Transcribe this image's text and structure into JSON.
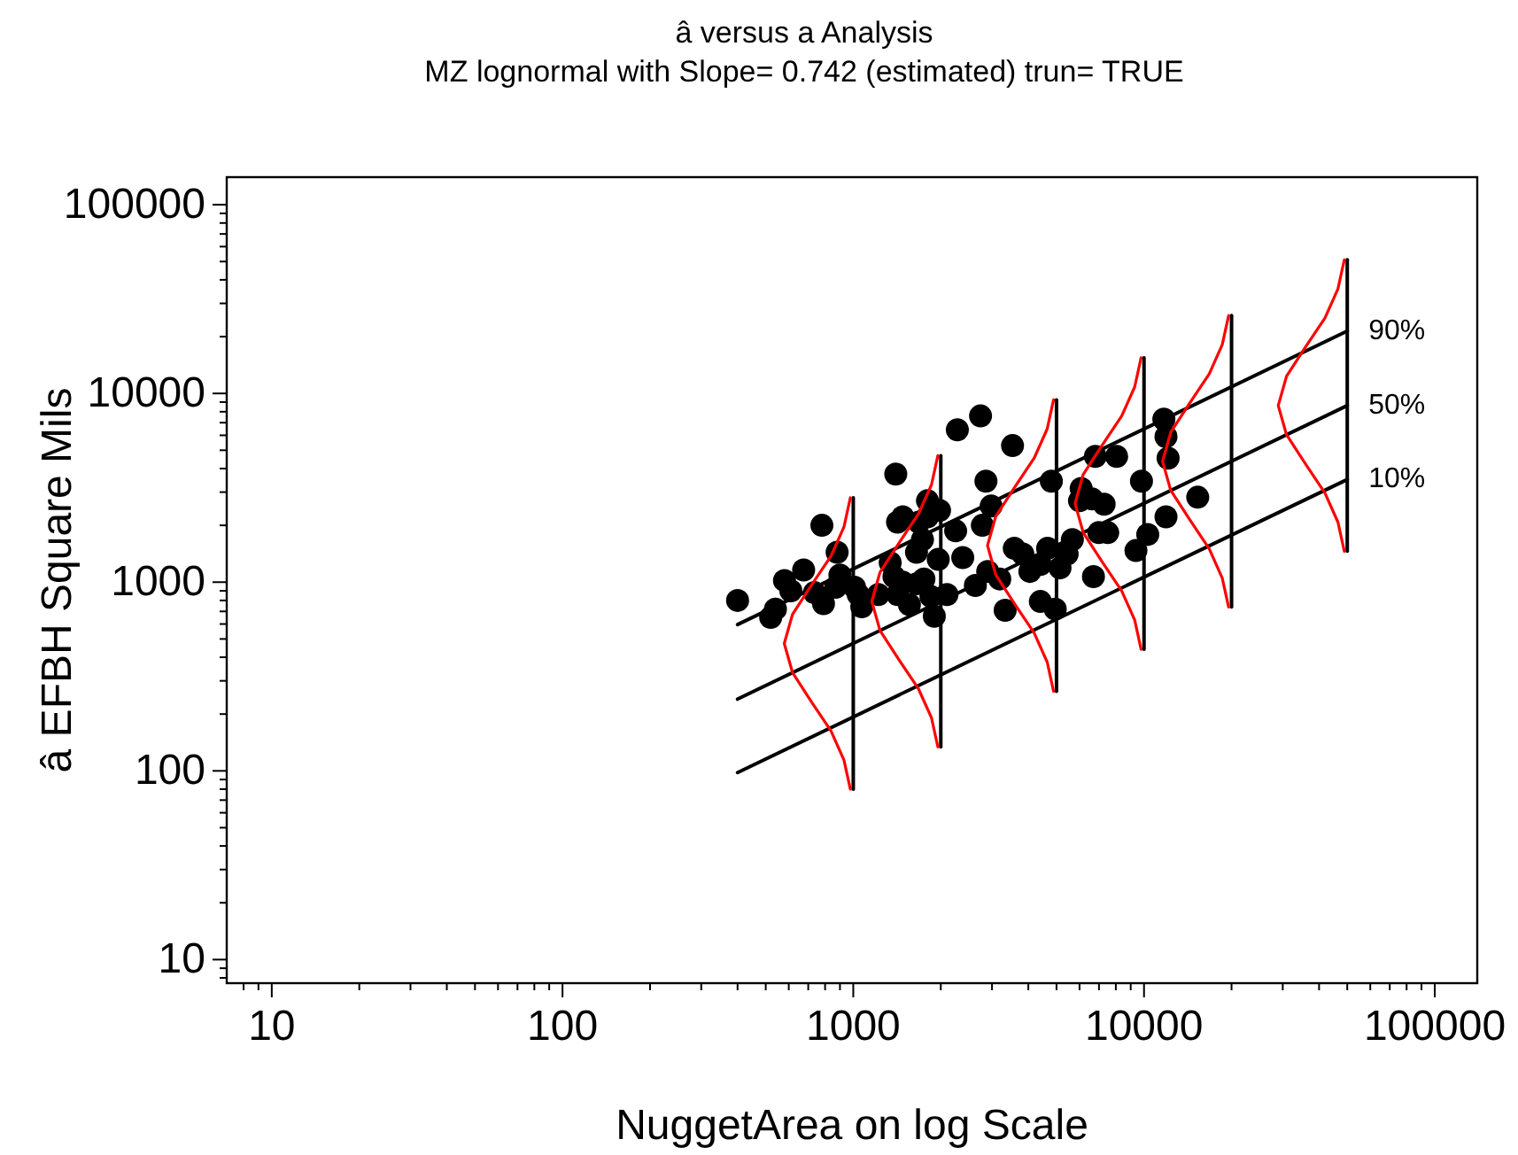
{
  "chart_data": {
    "type": "scatter",
    "title": "â versus a Analysis",
    "subtitle": "MZ lognormal with Slope= 0.742 (estimated) trun= TRUE",
    "xlabel": "NuggetArea on log Scale",
    "ylabel": "â EFBH Square Mils",
    "log": "xy",
    "xlim": [
      7,
      140000
    ],
    "ylim": [
      7.5,
      140000
    ],
    "xticks": [
      {
        "value": 8,
        "label": null
      },
      {
        "value": 9,
        "label": null
      },
      10,
      {
        "value": 20,
        "label": null
      },
      {
        "value": 30,
        "label": null
      },
      {
        "value": 40,
        "label": null
      },
      {
        "value": 50,
        "label": null
      },
      {
        "value": 60,
        "label": null
      },
      {
        "value": 70,
        "label": null
      },
      {
        "value": 80,
        "label": null
      },
      {
        "value": 90,
        "label": null
      },
      100,
      {
        "value": 200,
        "label": null
      },
      {
        "value": 300,
        "label": null
      },
      {
        "value": 400,
        "label": null
      },
      {
        "value": 500,
        "label": null
      },
      {
        "value": 600,
        "label": null
      },
      {
        "value": 700,
        "label": null
      },
      {
        "value": 800,
        "label": null
      },
      {
        "value": 900,
        "label": null
      },
      1000,
      {
        "value": 2000,
        "label": null
      },
      {
        "value": 3000,
        "label": null
      },
      {
        "value": 4000,
        "label": null
      },
      {
        "value": 5000,
        "label": null
      },
      {
        "value": 6000,
        "label": null
      },
      {
        "value": 7000,
        "label": null
      },
      {
        "value": 8000,
        "label": null
      },
      {
        "value": 9000,
        "label": null
      },
      10000,
      {
        "value": 20000,
        "label": null
      },
      {
        "value": 30000,
        "label": null
      },
      {
        "value": 40000,
        "label": null
      },
      {
        "value": 50000,
        "label": null
      },
      {
        "value": 60000,
        "label": null
      },
      {
        "value": 70000,
        "label": null
      },
      {
        "value": 80000,
        "label": null
      },
      {
        "value": 90000,
        "label": null
      },
      100000
    ],
    "yticks": [
      {
        "value": 8,
        "label": null
      },
      {
        "value": 9,
        "label": null
      },
      10,
      {
        "value": 20,
        "label": null
      },
      {
        "value": 30,
        "label": null
      },
      {
        "value": 40,
        "label": null
      },
      {
        "value": 50,
        "label": null
      },
      {
        "value": 60,
        "label": null
      },
      {
        "value": 70,
        "label": null
      },
      {
        "value": 80,
        "label": null
      },
      {
        "value": 90,
        "label": null
      },
      100,
      {
        "value": 200,
        "label": null
      },
      {
        "value": 300,
        "label": null
      },
      {
        "value": 400,
        "label": null
      },
      {
        "value": 500,
        "label": null
      },
      {
        "value": 600,
        "label": null
      },
      {
        "value": 700,
        "label": null
      },
      {
        "value": 800,
        "label": null
      },
      {
        "value": 900,
        "label": null
      },
      1000,
      {
        "value": 2000,
        "label": null
      },
      {
        "value": 3000,
        "label": null
      },
      {
        "value": 4000,
        "label": null
      },
      {
        "value": 5000,
        "label": null
      },
      {
        "value": 6000,
        "label": null
      },
      {
        "value": 7000,
        "label": null
      },
      {
        "value": 8000,
        "label": null
      },
      {
        "value": 9000,
        "label": null
      },
      10000,
      {
        "value": 20000,
        "label": null
      },
      {
        "value": 30000,
        "label": null
      },
      {
        "value": 40000,
        "label": null
      },
      {
        "value": 50000,
        "label": null
      },
      {
        "value": 60000,
        "label": null
      },
      {
        "value": 70000,
        "label": null
      },
      {
        "value": 80000,
        "label": null
      },
      {
        "value": 90000,
        "label": null
      },
      100000
    ],
    "series": [
      {
        "marker": "circle",
        "color": "#000000",
        "x": [
          400,
          520,
          540,
          580,
          610,
          675,
          780,
          735,
          790,
          880,
          900,
          870,
          1010,
          1040,
          1070,
          1220,
          1340,
          1420,
          1380,
          1420,
          1480,
          1400,
          1480,
          1560,
          1650,
          1650,
          1680,
          1730,
          1800,
          1800,
          1750,
          1850,
          1900,
          1980,
          1960,
          2100,
          2250,
          2280,
          2380,
          2630,
          2740,
          2780,
          2860,
          2980,
          2900,
          3190,
          3330,
          3530,
          3580,
          3830,
          4050,
          4400,
          4400,
          4660,
          4950,
          4800,
          5140,
          5440,
          5670,
          6000,
          6080,
          6620,
          6800,
          6700,
          6990,
          7290,
          7500,
          8050,
          9380,
          9800,
          10300,
          11700,
          11900,
          12100,
          11900,
          15300
        ],
        "values": [
          800,
          650,
          720,
          1020,
          900,
          1160,
          2000,
          880,
          770,
          1440,
          1090,
          940,
          940,
          860,
          740,
          860,
          1270,
          2080,
          1070,
          860,
          2220,
          3740,
          1000,
          760,
          980,
          1440,
          2080,
          1680,
          2220,
          2700,
          1040,
          840,
          660,
          2400,
          1320,
          860,
          1870,
          6420,
          1350,
          960,
          7600,
          2000,
          3430,
          2530,
          1140,
          1040,
          710,
          5290,
          1510,
          1410,
          1140,
          1240,
          790,
          1510,
          720,
          3430,
          1190,
          1410,
          1680,
          2700,
          3140,
          2760,
          4640,
          1070,
          1830,
          2590,
          1830,
          4640,
          1470,
          3430,
          1790,
          7300,
          5900,
          4540,
          2220,
          2820
        ]
      },
      {
        "type": "line",
        "color": "#000000",
        "x": [
          400,
          50000
        ],
        "values": [
          596,
          21400
        ]
      },
      {
        "type": "line",
        "color": "#000000",
        "x": [
          400,
          50000
        ],
        "values": [
          240,
          8630
        ]
      },
      {
        "type": "line",
        "color": "#000000",
        "x": [
          400,
          50000
        ],
        "values": [
          98,
          3500
        ]
      },
      {
        "type": "line",
        "color": "#000000",
        "x": [
          1000,
          1000
        ],
        "values": [
          80,
          2800
        ]
      },
      {
        "type": "line",
        "color": "#000000",
        "x": [
          2000,
          2000
        ],
        "values": [
          134,
          4683
        ]
      },
      {
        "type": "line",
        "color": "#000000",
        "x": [
          5000,
          5000
        ],
        "values": [
          264,
          9253
        ]
      },
      {
        "type": "line",
        "color": "#000000",
        "x": [
          10000,
          10000
        ],
        "values": [
          441,
          15460
        ]
      },
      {
        "type": "line",
        "color": "#000000",
        "x": [
          20000,
          20000
        ],
        "values": [
          738,
          25850
        ]
      },
      {
        "type": "line",
        "color": "#000000",
        "x": [
          50000,
          50000
        ],
        "values": [
          1458,
          51090
        ]
      },
      {
        "type": "line",
        "color": "#ff0000",
        "x": [
          977,
          929,
          838,
          718,
          618,
          579,
          618,
          718,
          838,
          929,
          977
        ],
        "values": [
          80,
          114,
          163,
          232,
          332,
          473,
          675,
          964,
          1375,
          1963,
          2800
        ]
      },
      {
        "type": "line",
        "color": "#ff0000",
        "x": [
          1954,
          1858,
          1676,
          1436,
          1236,
          1158,
          1236,
          1436,
          1676,
          1858,
          1954
        ],
        "values": [
          134,
          191,
          272,
          388,
          554,
          791,
          1129,
          1611,
          2299,
          3283,
          4683
        ]
      },
      {
        "type": "line",
        "color": "#ff0000",
        "x": [
          4885,
          4645,
          4190,
          3590,
          3090,
          2895,
          3090,
          3590,
          4190,
          4645,
          4885
        ],
        "values": [
          264,
          377,
          538,
          767,
          1096,
          1563,
          2230,
          3184,
          4542,
          6486,
          9253
        ]
      },
      {
        "type": "line",
        "color": "#ff0000",
        "x": [
          9770,
          9290,
          8380,
          7180,
          6180,
          5790,
          6180,
          7180,
          8380,
          9290,
          9770
        ],
        "values": [
          441,
          629,
          899,
          1282,
          1831,
          2612,
          3727,
          5321,
          7590,
          10840,
          15460
        ]
      },
      {
        "type": "line",
        "color": "#ff0000",
        "x": [
          19540,
          18580,
          16760,
          14360,
          12360,
          11580,
          12360,
          14360,
          16760,
          18580,
          19540
        ],
        "values": [
          738,
          1052,
          1502,
          2144,
          3061,
          4366,
          6230,
          8894,
          12690,
          18120,
          25850
        ]
      },
      {
        "type": "line",
        "color": "#ff0000",
        "x": [
          48850,
          46450,
          41900,
          35900,
          30900,
          28950,
          30900,
          35900,
          41900,
          46450,
          48850
        ],
        "values": [
          1458,
          2080,
          2969,
          4237,
          6050,
          8630,
          12310,
          17580,
          25080,
          35810,
          51090
        ]
      }
    ],
    "annotations": [
      "90%",
      "50%",
      "10%"
    ]
  }
}
